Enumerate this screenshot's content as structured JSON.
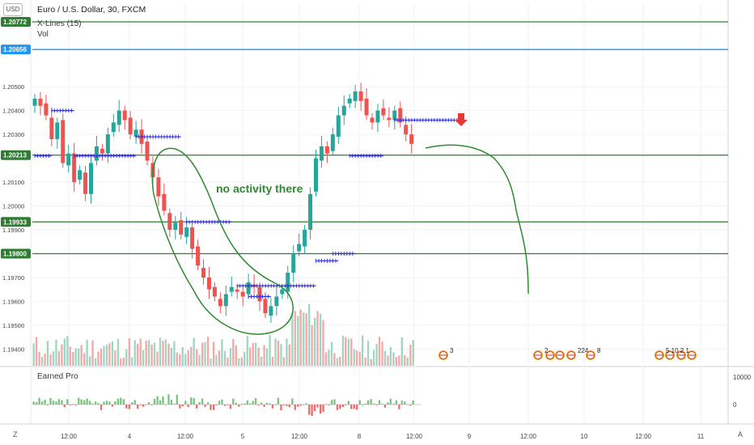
{
  "header": {
    "currency_badge": "USD",
    "title": "Euro / U.S. Dollar, 30, FXCM",
    "indicator_xlines": "X-Lines (15)",
    "indicator_vol": "Vol",
    "lower_pane_title": "Earned Pro",
    "annotation_text": "no activity there",
    "bottom_left_button": "Z",
    "bottom_right_button": "A"
  },
  "colors": {
    "up": "#26a69a",
    "down": "#ef5350",
    "hline": "#2e7d32",
    "blue_line": "#2196f3",
    "xline_marker": "#2f2fd8",
    "drawing": "#2e8b2e",
    "arrow": "#e53935",
    "vol_up": "#9fd6c3",
    "vol_down": "#f4a7a5"
  },
  "chart_data": {
    "type": "candlestick",
    "title": "Euro / U.S. Dollar, 30, FXCM",
    "y_range": [
      1.1933,
      1.2085
    ],
    "x_tick_labels": [
      "12:00",
      "4",
      "12:00",
      "5",
      "12:00",
      "8",
      "12:00",
      "9",
      "12:00",
      "10",
      "12:00",
      "11"
    ],
    "y_tick_labels": [
      "1.20500",
      "1.20400",
      "1.20300",
      "1.20100",
      "1.20000",
      "1.19900",
      "1.19700",
      "1.19600",
      "1.19500",
      "1.19400"
    ],
    "y_ticks": [
      1.205,
      1.204,
      1.203,
      1.201,
      1.2,
      1.199,
      1.197,
      1.196,
      1.195,
      1.194
    ],
    "horizontal_levels": [
      {
        "price": 1.20772,
        "label": "1.20772",
        "kind": "green"
      },
      {
        "price": 1.20656,
        "label": "1.20656",
        "kind": "blue"
      },
      {
        "price": 1.20213,
        "label": "1.20213",
        "kind": "green"
      },
      {
        "price": 1.19933,
        "label": "1.19933",
        "kind": "green"
      },
      {
        "price": 1.198,
        "label": "1.19800",
        "kind": "green"
      }
    ],
    "close_path": [
      1.2045,
      1.2042,
      1.2038,
      1.2028,
      1.2035,
      1.2018,
      1.2022,
      1.201,
      1.2015,
      1.2005,
      1.2018,
      1.2025,
      1.2022,
      1.203,
      1.2035,
      1.204,
      1.2036,
      1.203,
      1.2032,
      1.2026,
      1.2019,
      1.2012,
      1.2004,
      1.1998,
      1.199,
      1.1993,
      1.1988,
      1.1991,
      1.1982,
      1.1975,
      1.197,
      1.1965,
      1.1962,
      1.1958,
      1.1963,
      1.1966,
      1.1964,
      1.1962,
      1.1968,
      1.1966,
      1.196,
      1.1955,
      1.1958,
      1.1962,
      1.1965,
      1.1972,
      1.198,
      1.1984,
      1.199,
      1.2005,
      1.202,
      1.2025,
      1.2022,
      1.203,
      1.2038,
      1.2042,
      1.2045,
      1.2048,
      1.2044,
      1.2038,
      1.2035,
      1.204,
      1.2038,
      1.2036,
      1.204,
      1.2035,
      1.203,
      1.2026
    ],
    "x_lines": [
      {
        "price": 1.204,
        "from": 3,
        "to": 7
      },
      {
        "price": 1.2021,
        "from": 0,
        "to": 3
      },
      {
        "price": 1.2021,
        "from": 7,
        "to": 18
      },
      {
        "price": 1.2029,
        "from": 18,
        "to": 26
      },
      {
        "price": 1.19933,
        "from": 27,
        "to": 35
      },
      {
        "price": 1.19665,
        "from": 36,
        "to": 44
      },
      {
        "price": 1.1962,
        "from": 38,
        "to": 42
      },
      {
        "price": 1.19665,
        "from": 44,
        "to": 50
      },
      {
        "price": 1.1977,
        "from": 50,
        "to": 54
      },
      {
        "price": 1.198,
        "from": 53,
        "to": 57
      },
      {
        "price": 1.2021,
        "from": 56,
        "to": 62
      },
      {
        "price": 1.2036,
        "from": 64,
        "to": 76
      }
    ],
    "event_markers": [
      {
        "label": "3"
      },
      {
        "label": "2"
      },
      {
        "label": "224"
      },
      {
        "label": "8"
      },
      {
        "label": "5 10 2 1"
      }
    ],
    "lower_axis_labels": [
      "10000",
      "0"
    ]
  }
}
